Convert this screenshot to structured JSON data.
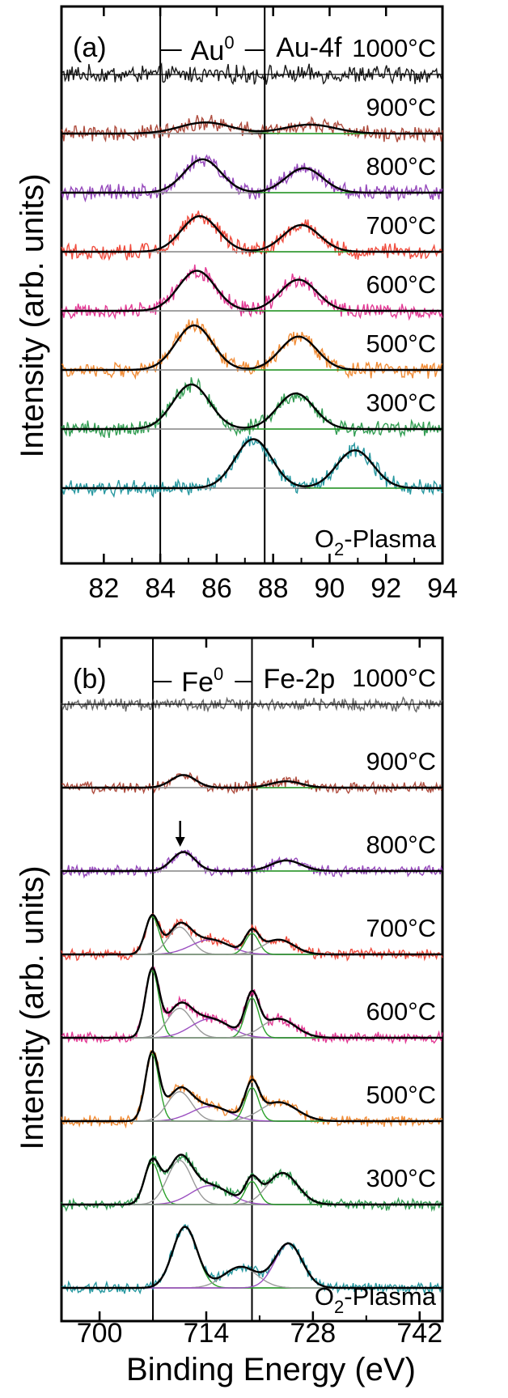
{
  "figure": {
    "xlabel": "Binding Energy (eV)",
    "ylabel": "Intensity (arb. units)"
  },
  "chart_data": [
    {
      "type": "line",
      "panel_label": "(a)",
      "title": "Au-4f",
      "ref_label": {
        "main": "Au",
        "sup": "0"
      },
      "xlim": [
        80.5,
        94
      ],
      "xticks": [
        "82",
        "84",
        "86",
        "88",
        "90",
        "92",
        "94"
      ],
      "xtick_values": [
        82,
        84,
        86,
        88,
        90,
        92,
        94
      ],
      "ylabel": "Intensity (arb. units)",
      "reference_lines": [
        84.0,
        87.7
      ],
      "series": [
        {
          "name": "1000°C",
          "color": "#000000",
          "peaks": [],
          "noise": 0.16
        },
        {
          "name": "900°C",
          "color": "#a63a2a",
          "peaks": [
            [
              85.6,
              0.25,
              0.9
            ],
            [
              89.3,
              0.2,
              0.9
            ]
          ],
          "noise": 0.14
        },
        {
          "name": "800°C",
          "color": "#8b35b5",
          "peaks": [
            [
              85.5,
              0.75,
              0.65
            ],
            [
              89.1,
              0.55,
              0.65
            ]
          ],
          "noise": 0.14
        },
        {
          "name": "700°C",
          "color": "#ee3a2a",
          "peaks": [
            [
              85.4,
              0.8,
              0.65
            ],
            [
              89.0,
              0.6,
              0.65
            ]
          ],
          "noise": 0.14
        },
        {
          "name": "600°C",
          "color": "#e0258a",
          "peaks": [
            [
              85.3,
              0.9,
              0.65
            ],
            [
              88.9,
              0.7,
              0.65
            ]
          ],
          "noise": 0.14
        },
        {
          "name": "500°C",
          "color": "#f08020",
          "peaks": [
            [
              85.2,
              1.0,
              0.65
            ],
            [
              88.9,
              0.75,
              0.65
            ]
          ],
          "noise": 0.14
        },
        {
          "name": "300°C",
          "color": "#1d9440",
          "peaks": [
            [
              85.1,
              1.0,
              0.65
            ],
            [
              88.8,
              0.8,
              0.65
            ]
          ],
          "noise": 0.14
        },
        {
          "name": "O2-Plasma",
          "label_main": "O",
          "label_sub": "2",
          "label_rest": "-Plasma",
          "color": "#0f8d96",
          "peaks": [
            [
              87.3,
              1.1,
              0.65
            ],
            [
              90.9,
              0.85,
              0.65
            ]
          ],
          "noise": 0.14
        }
      ]
    },
    {
      "type": "line",
      "panel_label": "(b)",
      "title": "Fe-2p",
      "ref_label": {
        "main": "Fe",
        "sup": "0"
      },
      "xlim": [
        695,
        745
      ],
      "xticks": [
        "700",
        "714",
        "728",
        "742"
      ],
      "xtick_values": [
        700,
        714,
        728,
        742
      ],
      "ylabel": "Intensity (arb. units)",
      "reference_lines": [
        707.0,
        720.0
      ],
      "arrow_at": 711,
      "series": [
        {
          "name": "1000°C",
          "color": "#555555",
          "peaks": [],
          "noise": 0.12
        },
        {
          "name": "900°C",
          "color": "#a63a2a",
          "peaks": [
            [
              711,
              0.3,
              1.6
            ],
            [
              724.5,
              0.15,
              2.0
            ]
          ],
          "noise": 0.1
        },
        {
          "name": "800°C",
          "color": "#8b35b5",
          "peaks": [
            [
              711,
              0.45,
              1.5
            ],
            [
              724.5,
              0.25,
              2.0
            ]
          ],
          "noise": 0.1
        },
        {
          "name": "700°C",
          "color": "#ee3a2a",
          "peaks": [
            [
              706.9,
              0.9,
              0.9
            ],
            [
              710.5,
              0.65,
              1.5
            ],
            [
              714.5,
              0.35,
              2.5
            ],
            [
              720,
              0.5,
              0.9
            ],
            [
              723.5,
              0.35,
              2.0
            ]
          ],
          "noise": 0.1
        },
        {
          "name": "600°C",
          "color": "#e0258a",
          "peaks": [
            [
              706.9,
              1.6,
              0.9
            ],
            [
              710.5,
              0.7,
              1.6
            ],
            [
              714.5,
              0.45,
              2.5
            ],
            [
              720,
              0.95,
              0.9
            ],
            [
              723.5,
              0.45,
              2.2
            ]
          ],
          "noise": 0.1
        },
        {
          "name": "500°C",
          "color": "#f08020",
          "peaks": [
            [
              706.9,
              1.6,
              0.9
            ],
            [
              710.5,
              0.7,
              1.6
            ],
            [
              714.5,
              0.35,
              2.5
            ],
            [
              720,
              0.8,
              0.9
            ],
            [
              723.5,
              0.45,
              2.4
            ]
          ],
          "noise": 0.1
        },
        {
          "name": "300°C",
          "color": "#1d9440",
          "peaks": [
            [
              706.9,
              1.0,
              1.0
            ],
            [
              710.5,
              1.05,
              1.6
            ],
            [
              714.5,
              0.45,
              2.5
            ],
            [
              720,
              0.55,
              0.9
            ],
            [
              724.0,
              0.75,
              2.0
            ]
          ],
          "noise": 0.1
        },
        {
          "name": "O2-Plasma",
          "label_main": "O",
          "label_sub": "2",
          "label_rest": "-Plasma",
          "color": "#0f8d96",
          "peaks": [
            [
              711.2,
              1.45,
              1.6
            ],
            [
              718.5,
              0.5,
              2.2
            ],
            [
              724.8,
              1.05,
              1.8
            ]
          ],
          "noise": 0.1
        }
      ]
    }
  ]
}
